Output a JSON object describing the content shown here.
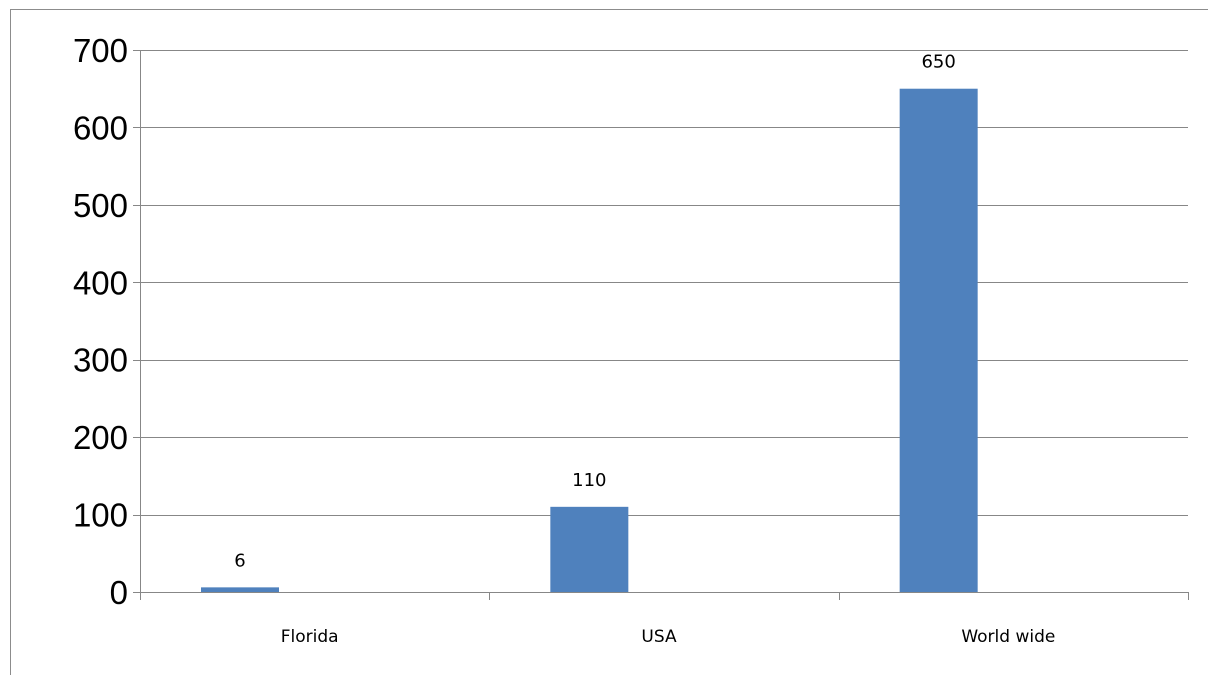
{
  "chart_data": {
    "type": "bar",
    "categories": [
      "Florida",
      "USA",
      "World wide"
    ],
    "values": [
      6,
      110,
      650
    ],
    "data_labels": [
      "6",
      "110",
      "650"
    ],
    "ylim": [
      0,
      700
    ],
    "yticks": [
      0,
      100,
      200,
      300,
      400,
      500,
      600,
      700
    ],
    "title": "",
    "xlabel": "",
    "ylabel": "",
    "grid": true,
    "legend": "none",
    "bar_color": "#4f81bd",
    "grid_color": "#878787"
  }
}
